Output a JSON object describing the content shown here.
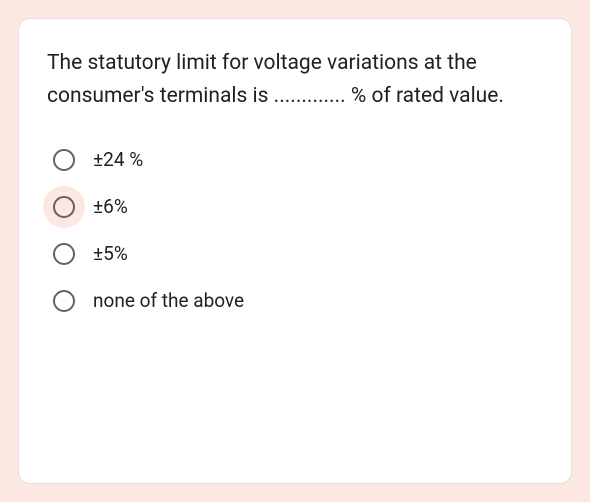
{
  "card": {
    "background_color": "#ffffff",
    "border_color": "#e0e0e0",
    "border_radius": 12
  },
  "page": {
    "background_color": "#fce8e1"
  },
  "question": {
    "text": "The statutory limit for voltage variations at the consumer's terminals is ............. % of rated value.",
    "font_size": 21,
    "color": "#202124"
  },
  "options": [
    {
      "label": "±24 %",
      "highlighted": false
    },
    {
      "label": "±6%",
      "highlighted": true
    },
    {
      "label": "±5%",
      "highlighted": false
    },
    {
      "label": "none of the above",
      "highlighted": false
    }
  ],
  "radio": {
    "border_color": "#5f6368",
    "highlight_color": "#fce8e1"
  }
}
